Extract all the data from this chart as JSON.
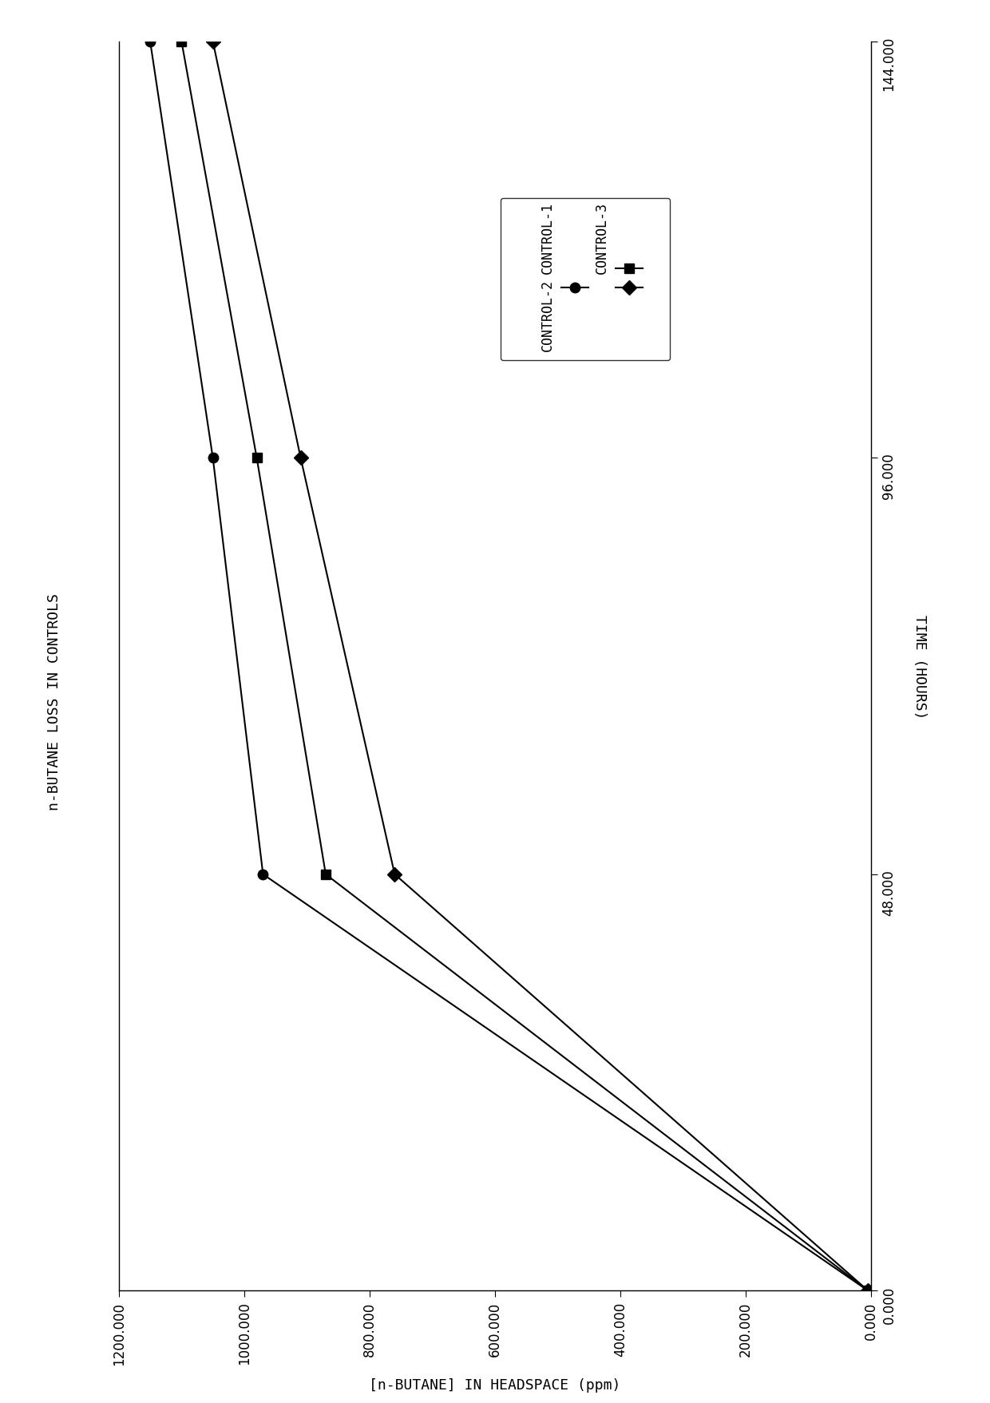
{
  "title": "n-BUTANE LOSS IN CONTROLS",
  "xlabel": "[n-BUTANE] IN HEADSPACE (ppm)",
  "ylabel": "TIME (HOURS)",
  "xlim": [
    1200,
    0
  ],
  "ylim": [
    0,
    144
  ],
  "xticks": [
    1200,
    1000,
    800,
    600,
    400,
    200,
    0
  ],
  "yticks": [
    0,
    48,
    96,
    144
  ],
  "series": [
    {
      "label": "CONTROL-1",
      "marker": "o",
      "x": [
        1150,
        1050,
        970,
        5
      ],
      "y": [
        144,
        96,
        48,
        0
      ]
    },
    {
      "label": "CONTROL-2",
      "marker": "s",
      "x": [
        1100,
        980,
        870,
        5
      ],
      "y": [
        144,
        96,
        48,
        0
      ]
    },
    {
      "label": "CONTROL-3",
      "marker": "D",
      "x": [
        1050,
        910,
        760,
        5
      ],
      "y": [
        144,
        96,
        48,
        0
      ]
    }
  ],
  "legend_labels_text": [
    "CONTROL-1",
    "CONTROL-2",
    "CONTROL-3"
  ],
  "background_color": "#ffffff",
  "line_color": "#000000",
  "left_label": "n-BUTANE LOSS IN CONTROLS",
  "right_label": "TIME (HOURS)"
}
